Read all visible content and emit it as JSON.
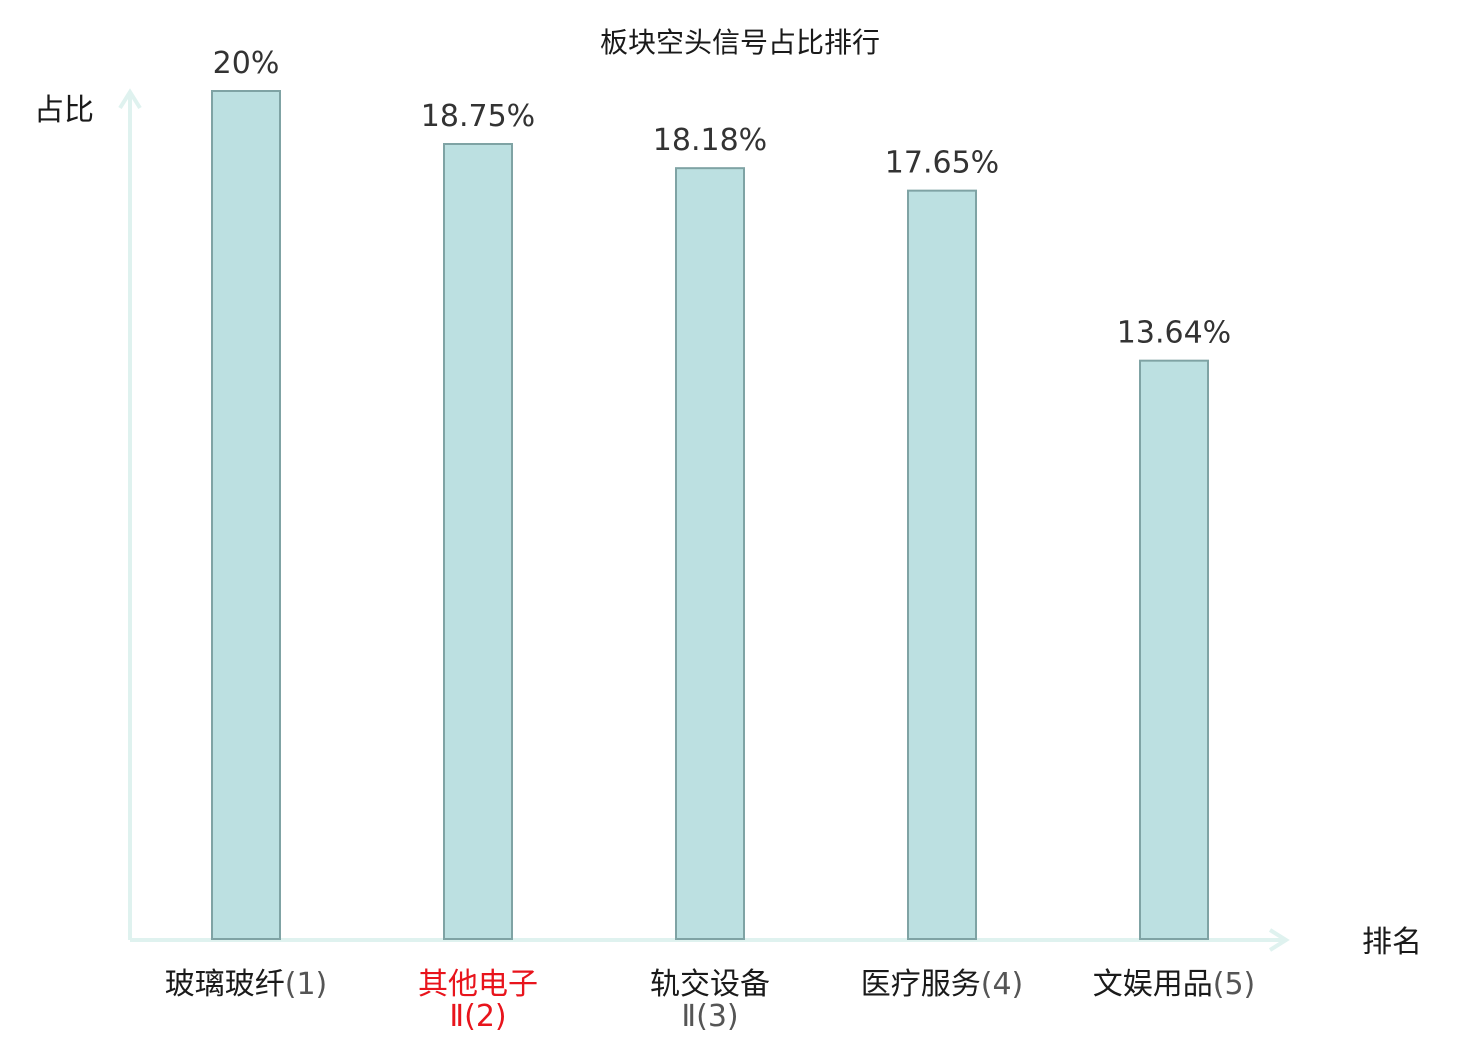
{
  "chart_data": {
    "type": "bar",
    "title": "板块空头信号占比排行",
    "ylabel": "占比",
    "xlabel": "排名",
    "categories": [
      {
        "name_lines": [
          "玻璃玻纤"
        ],
        "rank": "(1)",
        "highlight": false
      },
      {
        "name_lines": [
          "其他电子",
          "Ⅱ"
        ],
        "rank": "(2)",
        "highlight": true
      },
      {
        "name_lines": [
          "轨交设备",
          "Ⅱ"
        ],
        "rank": "(3)",
        "highlight": false
      },
      {
        "name_lines": [
          "医疗服务"
        ],
        "rank": "(4)",
        "highlight": false
      },
      {
        "name_lines": [
          "文娱用品"
        ],
        "rank": "(5)",
        "highlight": false
      }
    ],
    "values": [
      20,
      18.75,
      18.18,
      17.65,
      13.64
    ],
    "value_labels": [
      "20%",
      "18.75%",
      "18.18%",
      "17.65%",
      "13.64%"
    ],
    "ylim": [
      0,
      20
    ],
    "grid": false,
    "legend": "none",
    "colors": {
      "bar_fill": "#bce0e1",
      "bar_stroke": "#7fa3a4",
      "axis": "#dff2ef",
      "highlight_text": "#e8141c",
      "normal_text": "#1a1a1a",
      "rank_text": "#555555"
    }
  }
}
